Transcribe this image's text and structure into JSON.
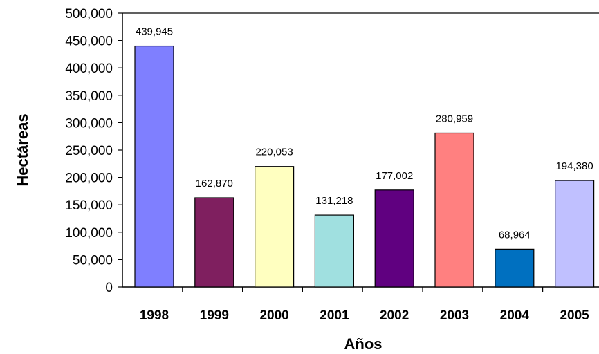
{
  "chart_data": {
    "type": "bar",
    "title": "",
    "xlabel": "Años",
    "ylabel": "Hectáreas",
    "ylim": [
      0,
      500000
    ],
    "yticks": [
      0,
      50000,
      100000,
      150000,
      200000,
      250000,
      300000,
      350000,
      400000,
      450000,
      500000
    ],
    "ytick_labels": [
      "0",
      "50,000",
      "100,000",
      "150,000",
      "200,000",
      "250,000",
      "300,000",
      "350,000",
      "400,000",
      "450,000",
      "500,000"
    ],
    "categories": [
      "1998",
      "1999",
      "2000",
      "2001",
      "2002",
      "2003",
      "2004",
      "2005"
    ],
    "values": [
      439945,
      162870,
      220053,
      131218,
      177002,
      280959,
      68964,
      194380
    ],
    "value_labels": [
      "439,945",
      "162,870",
      "220,053",
      "131,218",
      "177,002",
      "280,959",
      "68,964",
      "194,380"
    ],
    "colors": [
      "#7f7fff",
      "#7f1f5f",
      "#ffffc0",
      "#a0e0e0",
      "#600080",
      "#ff8080",
      "#0070c0",
      "#c0c0ff"
    ],
    "grid": false,
    "legend": "none"
  }
}
